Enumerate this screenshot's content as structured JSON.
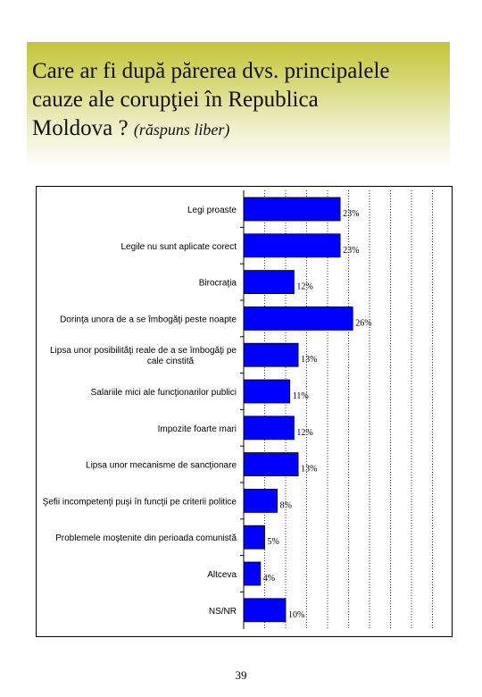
{
  "title": {
    "line1": "Care ar fi după părerea dvs. principalele",
    "line2": "cauze ale corupţiei în Republica",
    "line3": "Moldova ?",
    "subtitle": "(răspuns liber)"
  },
  "page_number": "39",
  "colors": {
    "bar": "#0000ff",
    "band_top": "#c4c63a"
  },
  "chart_data": {
    "type": "bar",
    "orientation": "horizontal",
    "title": "Care ar fi după părerea dvs. principalele cauze ale corupţiei în Republica Moldova ? (răspuns liber)",
    "xlim": [
      0,
      100
    ],
    "grid": true,
    "categories": [
      [
        "Legi proaste"
      ],
      [
        "Legile nu sunt aplicate corect"
      ],
      [
        "Birocraţia"
      ],
      [
        "Dorinţa unora de a se îmbogăţi peste noapte"
      ],
      [
        "Lipsa unor posibilităţi reale de a se îmbogăţi pe",
        "cale cinstită"
      ],
      [
        "Salariile mici ale funcţionarilor publici"
      ],
      [
        "Impozite foarte mari"
      ],
      [
        "Lipsa unor mecanisme de sancţionare"
      ],
      [
        "Şefii incompetenţi puşi în funcţii pe criterii politice"
      ],
      [
        "Problemele moştenite din perioada comunistă"
      ],
      [
        "Altceva"
      ],
      [
        "NS/NR"
      ]
    ],
    "values": [
      23,
      23,
      12,
      26,
      13,
      11,
      12,
      13,
      8,
      5,
      4,
      10
    ],
    "value_labels": [
      "23%",
      "23%",
      "12%",
      "26%",
      "13%",
      "11%",
      "12%",
      "13%",
      "8%",
      "5%",
      "4%",
      "10%"
    ]
  }
}
